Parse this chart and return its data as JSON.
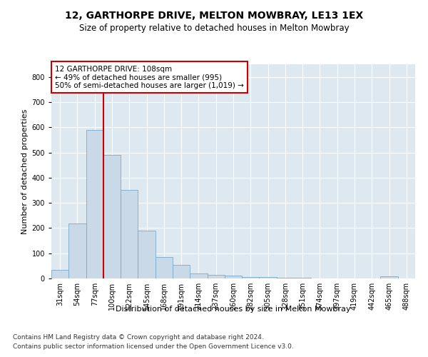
{
  "title": "12, GARTHORPE DRIVE, MELTON MOWBRAY, LE13 1EX",
  "subtitle": "Size of property relative to detached houses in Melton Mowbray",
  "xlabel": "Distribution of detached houses by size in Melton Mowbray",
  "ylabel": "Number of detached properties",
  "bin_labels": [
    "31sqm",
    "54sqm",
    "77sqm",
    "100sqm",
    "122sqm",
    "145sqm",
    "168sqm",
    "191sqm",
    "214sqm",
    "237sqm",
    "260sqm",
    "282sqm",
    "305sqm",
    "328sqm",
    "351sqm",
    "374sqm",
    "397sqm",
    "419sqm",
    "442sqm",
    "465sqm",
    "488sqm"
  ],
  "bar_values": [
    35,
    218,
    590,
    490,
    352,
    190,
    85,
    55,
    20,
    14,
    12,
    7,
    5,
    2,
    2,
    1,
    0,
    0,
    0,
    8,
    0
  ],
  "bar_color": "#c9d9e8",
  "bar_edge_color": "#7aaac8",
  "annotation_line1": "12 GARTHORPE DRIVE: 108sqm",
  "annotation_line2": "← 49% of detached houses are smaller (995)",
  "annotation_line3": "50% of semi-detached houses are larger (1,019) →",
  "annotation_box_color": "#ffffff",
  "annotation_box_edge_color": "#cc0000",
  "vline_color": "#cc0000",
  "vline_x": 2.5,
  "ylim": [
    0,
    850
  ],
  "yticks": [
    0,
    100,
    200,
    300,
    400,
    500,
    600,
    700,
    800
  ],
  "footer_line1": "Contains HM Land Registry data © Crown copyright and database right 2024.",
  "footer_line2": "Contains public sector information licensed under the Open Government Licence v3.0.",
  "fig_bg_color": "#ffffff",
  "plot_bg_color": "#dde8f0",
  "grid_color": "#ffffff",
  "title_fontsize": 10,
  "subtitle_fontsize": 8.5,
  "ylabel_fontsize": 8,
  "xlabel_fontsize": 8,
  "tick_fontsize": 7,
  "footer_fontsize": 6.5,
  "annot_fontsize": 7.5
}
